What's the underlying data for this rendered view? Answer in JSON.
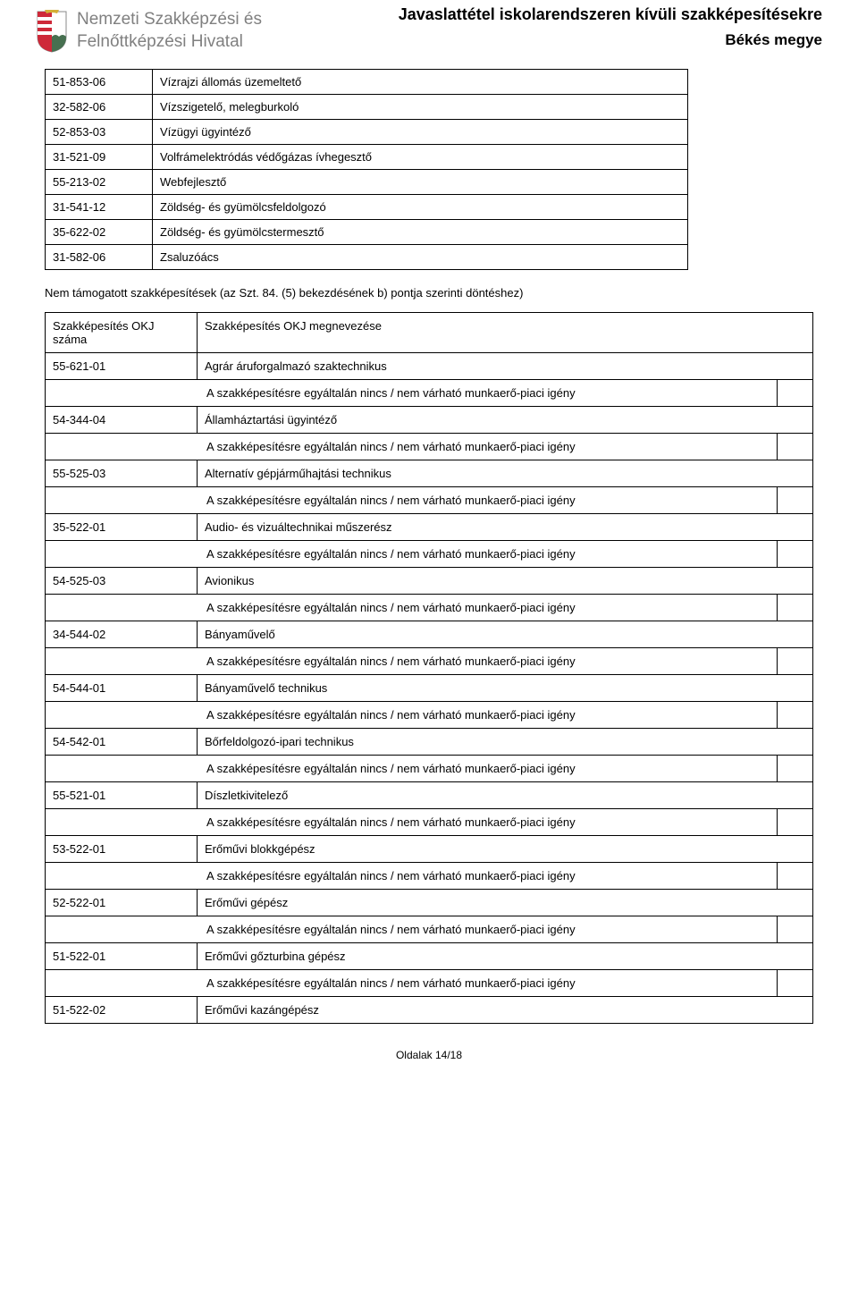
{
  "header": {
    "org_line1": "Nemzeti Szakképzési és",
    "org_line2": "Felnőttképzési Hivatal",
    "title_main": "Javaslattétel iskolarendszeren kívüli szakképesítésekre",
    "title_sub": "Békés megye"
  },
  "crest_colors": {
    "red": "#ce2939",
    "green": "#477050",
    "white": "#ffffff",
    "gold": "#d4af37"
  },
  "top_table": [
    {
      "code": "51-853-06",
      "name": "Vízrajzi állomás üzemeltető"
    },
    {
      "code": "32-582-06",
      "name": "Vízszigetelő, melegburkoló"
    },
    {
      "code": "52-853-03",
      "name": "Vízügyi ügyintéző"
    },
    {
      "code": "31-521-09",
      "name": "Volfrámelektródás védőgázas ívhegesztő"
    },
    {
      "code": "55-213-02",
      "name": "Webfejlesztő"
    },
    {
      "code": "31-541-12",
      "name": "Zöldség- és gyümölcsfeldolgozó"
    },
    {
      "code": "35-622-02",
      "name": "Zöldség- és gyümölcstermesztő"
    },
    {
      "code": "31-582-06",
      "name": "Zsaluzóács"
    }
  ],
  "section_note": "Nem támogatott szakképesítések (az Szt. 84. (5) bekezdésének b) pontja szerinti döntéshez)",
  "main_table": {
    "header_code": "Szakképesítés OKJ száma",
    "header_name": "Szakképesítés OKJ  megnevezése",
    "demand_text": "A szakképesítésre egyáltalán nincs / nem várható munkaerő-piaci igény",
    "rows": [
      {
        "code": "55-621-01",
        "name": "Agrár áruforgalmazó szaktechnikus"
      },
      {
        "code": "54-344-04",
        "name": "Államháztartási ügyintéző"
      },
      {
        "code": "55-525-03",
        "name": "Alternatív gépjárműhajtási technikus"
      },
      {
        "code": "35-522-01",
        "name": "Audio- és vizuáltechnikai műszerész"
      },
      {
        "code": "54-525-03",
        "name": "Avionikus"
      },
      {
        "code": "34-544-02",
        "name": "Bányaművelő"
      },
      {
        "code": "54-544-01",
        "name": "Bányaművelő technikus"
      },
      {
        "code": "54-542-01",
        "name": "Bőrfeldolgozó-ipari technikus"
      },
      {
        "code": "55-521-01",
        "name": "Díszletkivitelező"
      },
      {
        "code": "53-522-01",
        "name": "Erőművi blokkgépész"
      },
      {
        "code": "52-522-01",
        "name": "Erőművi gépész"
      },
      {
        "code": "51-522-01",
        "name": "Erőművi gőzturbina gépész"
      },
      {
        "code": "51-522-02",
        "name": "Erőművi kazángépész"
      }
    ]
  },
  "footer": "Oldalak 14/18"
}
